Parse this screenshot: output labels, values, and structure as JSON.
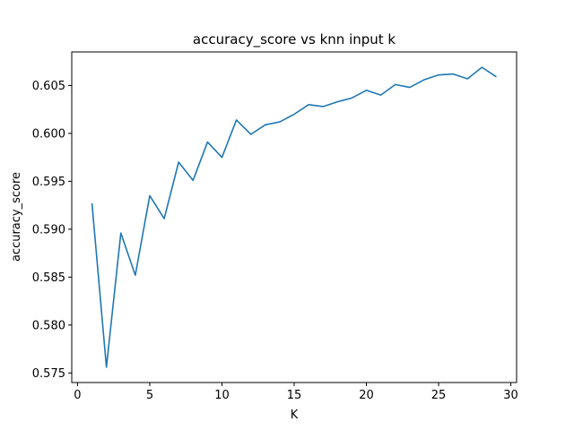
{
  "chart_data": {
    "type": "line",
    "title": "accuracy_score vs knn input k",
    "xlabel": "K",
    "ylabel": "accuracy_score",
    "xlim": [
      -0.4,
      30.4
    ],
    "ylim": [
      0.574,
      0.6085
    ],
    "xticks": [
      0,
      5,
      10,
      15,
      20,
      25,
      30
    ],
    "yticks": [
      0.575,
      0.58,
      0.585,
      0.59,
      0.595,
      0.6,
      0.605
    ],
    "ytick_labels": [
      "0.575",
      "0.580",
      "0.585",
      "0.590",
      "0.595",
      "0.600",
      "0.605"
    ],
    "grid": false,
    "series": [
      {
        "color": "#1f77b4",
        "x": [
          1,
          2,
          3,
          4,
          5,
          6,
          7,
          8,
          9,
          10,
          11,
          12,
          13,
          14,
          15,
          16,
          17,
          18,
          19,
          20,
          21,
          22,
          23,
          24,
          25,
          26,
          27,
          28,
          29
        ],
        "y": [
          0.5927,
          0.5756,
          0.5896,
          0.5852,
          0.5935,
          0.5911,
          0.597,
          0.5951,
          0.5991,
          0.5975,
          0.6014,
          0.5999,
          0.6009,
          0.6012,
          0.602,
          0.603,
          0.6028,
          0.6033,
          0.6037,
          0.6045,
          0.604,
          0.6051,
          0.6048,
          0.6056,
          0.6061,
          0.6062,
          0.6057,
          0.6069,
          0.6059
        ]
      }
    ]
  }
}
